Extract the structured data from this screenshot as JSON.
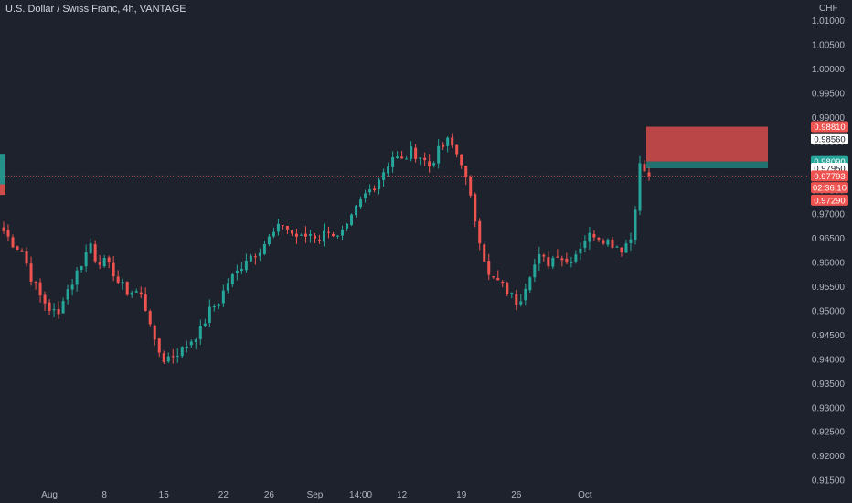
{
  "title": "U.S. Dollar / Swiss Franc, 4h, VANTAGE",
  "colors": {
    "background": "#1e222d",
    "up": "#26a69a",
    "down": "#ef5350",
    "text": "#b2b5be",
    "stop_zone": "#ef5350",
    "target_zone": "#26a69a"
  },
  "chart_data": {
    "type": "candlestick",
    "currency_label": "CHF",
    "ylim": [
      0.9135,
      1.0143
    ],
    "y_ticks": [
      "1.01000",
      "1.00500",
      "1.00000",
      "0.99500",
      "0.99000",
      "0.98500",
      "0.98000",
      "0.97500",
      "0.97000",
      "0.96500",
      "0.96000",
      "0.95500",
      "0.95000",
      "0.94500",
      "0.94000",
      "0.93500",
      "0.93000",
      "0.92500",
      "0.92000",
      "0.91500"
    ],
    "x_ticks": [
      "Aug",
      "8",
      "15",
      "22",
      "26",
      "Sep",
      "14:00",
      "12",
      "19",
      "26",
      "Oct"
    ],
    "grid": false,
    "price_path": [
      [
        0,
        0.9665
      ],
      [
        2,
        0.964
      ],
      [
        4,
        0.9625
      ],
      [
        6,
        0.957
      ],
      [
        8,
        0.953
      ],
      [
        10,
        0.9505
      ],
      [
        12,
        0.949
      ],
      [
        13,
        0.953
      ],
      [
        15,
        0.956
      ],
      [
        17,
        0.96
      ],
      [
        19,
        0.964
      ],
      [
        20,
        0.961
      ],
      [
        22,
        0.96
      ],
      [
        24,
        0.958
      ],
      [
        25,
        0.956
      ],
      [
        27,
        0.954
      ],
      [
        29,
        0.954
      ],
      [
        30,
        0.953
      ],
      [
        32,
        0.948
      ],
      [
        33,
        0.943
      ],
      [
        35,
        0.94
      ],
      [
        37,
        0.941
      ],
      [
        39,
        0.942
      ],
      [
        41,
        0.944
      ],
      [
        43,
        0.946
      ],
      [
        45,
        0.95
      ],
      [
        47,
        0.952
      ],
      [
        49,
        0.956
      ],
      [
        51,
        0.958
      ],
      [
        53,
        0.961
      ],
      [
        55,
        0.962
      ],
      [
        57,
        0.964
      ],
      [
        59,
        0.966
      ],
      [
        61,
        0.968
      ],
      [
        63,
        0.966
      ],
      [
        65,
        0.965
      ],
      [
        67,
        0.966
      ],
      [
        69,
        0.965
      ],
      [
        71,
        0.967
      ],
      [
        73,
        0.965
      ],
      [
        75,
        0.967
      ],
      [
        77,
        0.971
      ],
      [
        79,
        0.974
      ],
      [
        81,
        0.976
      ],
      [
        83,
        0.979
      ],
      [
        85,
        0.982
      ],
      [
        87,
        0.981
      ],
      [
        89,
        0.983
      ],
      [
        91,
        0.982
      ],
      [
        93,
        0.98
      ],
      [
        95,
        0.983
      ],
      [
        97,
        0.985
      ],
      [
        98,
        0.984
      ],
      [
        100,
        0.981
      ],
      [
        102,
        0.973
      ],
      [
        104,
        0.965
      ],
      [
        106,
        0.957
      ],
      [
        108,
        0.956
      ],
      [
        110,
        0.954
      ],
      [
        112,
        0.952
      ],
      [
        113,
        0.953
      ],
      [
        115,
        0.958
      ],
      [
        117,
        0.961
      ],
      [
        119,
        0.96
      ],
      [
        121,
        0.962
      ],
      [
        123,
        0.96
      ],
      [
        125,
        0.962
      ],
      [
        127,
        0.965
      ],
      [
        129,
        0.966
      ],
      [
        131,
        0.965
      ],
      [
        133,
        0.964
      ],
      [
        135,
        0.963
      ],
      [
        137,
        0.965
      ],
      [
        138,
        0.972
      ],
      [
        139,
        0.98
      ],
      [
        140,
        0.979
      ],
      [
        141,
        0.9779
      ]
    ],
    "position": {
      "entry": 0.9795,
      "stop": 0.9881,
      "target": 0.9809,
      "start_index": 141,
      "end_index": 168
    },
    "price_labels": [
      {
        "text": "0.98810",
        "value": 0.9881,
        "bg": "#ef5350",
        "fg": "#ffffff"
      },
      {
        "text": "0.98560",
        "value": 0.9856,
        "bg": "#ffffff",
        "fg": "#131722"
      },
      {
        "text": "0.98090",
        "value": 0.9809,
        "bg": "#26a69a",
        "fg": "#ffffff"
      },
      {
        "text": "0.97950",
        "value": 0.9795,
        "bg": "#ffffff",
        "fg": "#131722"
      },
      {
        "text": "0.97793",
        "value": 0.97793,
        "bg": "#ef5350",
        "fg": "#ffffff"
      },
      {
        "text": "02:36:10",
        "value": 0.9755,
        "bg": "#ef5350",
        "fg": "#ffffff"
      },
      {
        "text": "0.97290",
        "value": 0.9729,
        "bg": "#ef5350",
        "fg": "#ffffff"
      }
    ],
    "current_price": 0.97793
  }
}
